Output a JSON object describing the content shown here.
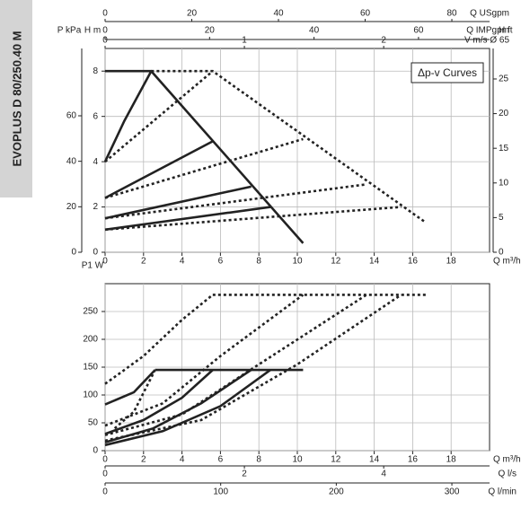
{
  "side_title": "EVOPLUS D 80/250.40 M",
  "chart_data": [
    {
      "type": "line",
      "annotation": "Δp-v Curves",
      "xlim": [
        0,
        20
      ],
      "xticks": [
        0,
        2,
        4,
        6,
        8,
        10,
        12,
        14,
        16,
        18
      ],
      "xlabel": "Q m³/h",
      "ylim": [
        0,
        9
      ],
      "yticks": [
        0,
        2,
        4,
        6,
        8
      ],
      "ylabel": "H m",
      "grid": true,
      "left_axes": [
        {
          "label": "P kPa",
          "lim": [
            0,
            89.6
          ],
          "ticks": [
            0,
            20,
            40,
            60
          ]
        }
      ],
      "right_axes": [
        {
          "label": "H ft",
          "lim": [
            0,
            29.4
          ],
          "ticks": [
            0,
            5,
            10,
            15,
            20,
            25
          ]
        }
      ],
      "top_axes": [
        {
          "label": "Q USgpm",
          "lim": [
            0,
            88.7
          ],
          "ticks": [
            0,
            20,
            40,
            60,
            80
          ]
        },
        {
          "label": "Q IMPgpm",
          "lim": [
            0,
            73.6
          ],
          "ticks": [
            0,
            20,
            40,
            60
          ]
        },
        {
          "label": "V m/s Ø 65",
          "lim": [
            0,
            2.76
          ],
          "ticks": [
            0,
            1,
            2
          ]
        }
      ],
      "series": [
        {
          "color": "#222",
          "dash": "solid",
          "x": [
            0,
            2.4,
            10.3
          ],
          "values": [
            8,
            8,
            0.4
          ]
        },
        {
          "color": "#222",
          "dash": "solid",
          "x": [
            0,
            1,
            2.4
          ],
          "values": [
            4,
            5.8,
            8
          ]
        },
        {
          "color": "#222",
          "dash": "solid",
          "x": [
            0,
            5.6
          ],
          "values": [
            2.4,
            4.9
          ]
        },
        {
          "color": "#222",
          "dash": "solid",
          "x": [
            0,
            7.6
          ],
          "values": [
            1.5,
            2.9
          ]
        },
        {
          "color": "#222",
          "dash": "solid",
          "x": [
            0,
            8.6
          ],
          "values": [
            1,
            2
          ]
        },
        {
          "color": "#222",
          "dash": "dotted",
          "x": [
            2.4,
            5.6,
            16.7
          ],
          "values": [
            8,
            8,
            1.3
          ]
        },
        {
          "color": "#222",
          "dash": "dotted",
          "x": [
            0,
            5.6
          ],
          "values": [
            4,
            8
          ]
        },
        {
          "color": "#222",
          "dash": "dotted",
          "x": [
            0,
            10.3
          ],
          "values": [
            2.4,
            5
          ]
        },
        {
          "color": "#222",
          "dash": "dotted",
          "x": [
            0,
            13.6
          ],
          "values": [
            1.5,
            3
          ]
        },
        {
          "color": "#222",
          "dash": "dotted",
          "x": [
            0,
            15.4
          ],
          "values": [
            1,
            2
          ]
        }
      ]
    },
    {
      "type": "line",
      "xlim": [
        0,
        20
      ],
      "xticks": [
        0,
        2,
        4,
        6,
        8,
        10,
        12,
        14,
        16,
        18
      ],
      "xlabel": "Q m³/h",
      "ylim": [
        0,
        300
      ],
      "yticks": [
        0,
        50,
        100,
        150,
        200,
        250
      ],
      "ylabel": "P1 W",
      "grid": true,
      "bottom_axes": [
        {
          "label": "Q l/s",
          "lim": [
            0,
            5.52
          ],
          "ticks": [
            0,
            2,
            4
          ]
        },
        {
          "label": "Q l/min",
          "lim": [
            0,
            332.6
          ],
          "ticks": [
            0,
            100,
            200,
            300
          ]
        }
      ],
      "series": [
        {
          "color": "#222",
          "dash": "solid",
          "x": [
            2.6,
            10.3
          ],
          "values": [
            145,
            145
          ]
        },
        {
          "color": "#222",
          "dash": "solid",
          "x": [
            0,
            1.5,
            2.6
          ],
          "values": [
            83,
            105,
            145
          ]
        },
        {
          "color": "#222",
          "dash": "solid",
          "x": [
            0,
            2,
            4,
            5.6
          ],
          "values": [
            30,
            55,
            95,
            145
          ]
        },
        {
          "color": "#222",
          "dash": "solid",
          "x": [
            0,
            2.5,
            5,
            7.6
          ],
          "values": [
            15,
            40,
            85,
            145
          ]
        },
        {
          "color": "#222",
          "dash": "solid",
          "x": [
            0,
            3,
            6,
            8.6
          ],
          "values": [
            10,
            35,
            80,
            145
          ]
        },
        {
          "color": "#222",
          "dash": "dotted",
          "x": [
            0,
            2,
            4,
            5.6
          ],
          "values": [
            120,
            170,
            235,
            280
          ]
        },
        {
          "color": "#222",
          "dash": "dotted",
          "x": [
            5.6,
            16.7
          ],
          "values": [
            280,
            280
          ]
        },
        {
          "color": "#222",
          "dash": "dotted",
          "x": [
            0,
            3,
            6,
            10.3
          ],
          "values": [
            45,
            85,
            170,
            280
          ]
        },
        {
          "color": "#222",
          "dash": "dotted",
          "x": [
            0,
            4,
            8,
            13.6
          ],
          "values": [
            28,
            65,
            155,
            280
          ]
        },
        {
          "color": "#222",
          "dash": "dotted",
          "x": [
            0,
            5,
            10,
            15.4
          ],
          "values": [
            18,
            55,
            155,
            280
          ]
        },
        {
          "color": "#222",
          "dash": "dotted",
          "x": [
            0.5,
            1.5,
            2.6
          ],
          "values": [
            40,
            70,
            145
          ]
        }
      ]
    }
  ]
}
